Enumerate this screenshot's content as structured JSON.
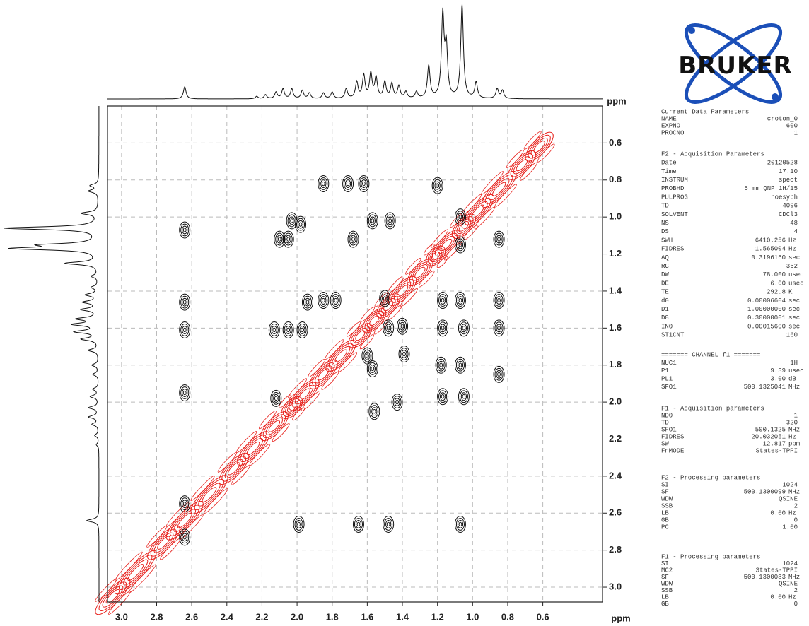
{
  "chart_data": {
    "type": "contour",
    "xlabel": "ppm",
    "ylabel": "ppm",
    "xlim": [
      3.08,
      0.26
    ],
    "ylim": [
      0.4,
      3.08
    ],
    "xticks": [
      {
        "value": 3,
        "label": "3.0"
      },
      2.8,
      2.6,
      2.4,
      2.2,
      {
        "value": 2,
        "label": "2.0"
      },
      1.8,
      1.6,
      1.4,
      1.2,
      {
        "value": 1,
        "label": "1.0"
      },
      0.8,
      0.6
    ],
    "yticks": [
      0.6,
      0.8,
      {
        "value": 1,
        "label": "1.0"
      },
      1.2,
      1.4,
      1.6,
      1.8,
      {
        "value": 2,
        "label": "2.0"
      },
      2.2,
      2.4,
      2.6,
      2.8,
      {
        "value": 3,
        "label": "3.0"
      }
    ],
    "grid": true,
    "series": [
      {
        "color": "#e8211c",
        "x": [
          3.05,
          2.92,
          2.76,
          2.64,
          2.5,
          2.36,
          2.25,
          2.13,
          2.03,
          1.96,
          1.85,
          1.75,
          1.64,
          1.56,
          1.48,
          1.4,
          1.3,
          1.21,
          1.15,
          1.05,
          0.97,
          0.85,
          0.72,
          0.62
        ],
        "values": [
          3.05,
          2.92,
          2.76,
          2.64,
          2.5,
          2.36,
          2.25,
          2.13,
          2.03,
          1.96,
          1.85,
          1.75,
          1.64,
          1.56,
          1.48,
          1.4,
          1.3,
          1.21,
          1.15,
          1.05,
          0.97,
          0.85,
          0.72,
          0.62
        ]
      },
      {
        "color": "#111111",
        "x": [
          2.64,
          2.64,
          2.64,
          2.64,
          2.64,
          2.64,
          2.12,
          2.13,
          2.1,
          2.05,
          2.03,
          1.98,
          2.05,
          1.97,
          1.94,
          1.85,
          1.71,
          1.62,
          1.57,
          1.47,
          1.68,
          1.5,
          1.48,
          1.4,
          1.39,
          1.6,
          1.57,
          1.56,
          1.43,
          1.85,
          1.78,
          1.2,
          1.17,
          1.17,
          1.18,
          1.17,
          1.07,
          1.07,
          1.07,
          1.05,
          1.05,
          1.07,
          0.85,
          0.85,
          0.85,
          0.85,
          1.99,
          1.65,
          1.48,
          1.07
        ],
        "values": [
          1.07,
          1.46,
          1.61,
          1.95,
          2.55,
          2.73,
          1.98,
          1.61,
          1.12,
          1.12,
          1.02,
          1.04,
          1.61,
          1.61,
          1.46,
          0.82,
          0.82,
          0.82,
          1.02,
          1.02,
          1.12,
          1.44,
          1.6,
          1.59,
          1.74,
          1.75,
          1.82,
          2.05,
          2.0,
          1.45,
          1.45,
          0.83,
          1.45,
          1.6,
          1.8,
          1.97,
          1.0,
          1.15,
          1.45,
          1.6,
          1.97,
          1.8,
          1.12,
          1.45,
          1.6,
          1.85,
          2.66,
          2.66,
          2.66,
          2.66
        ]
      }
    ],
    "projection": {
      "x": [
        2.64,
        2.23,
        2.18,
        2.12,
        2.08,
        2.03,
        1.97,
        1.93,
        1.85,
        1.8,
        1.72,
        1.66,
        1.62,
        1.58,
        1.55,
        1.5,
        1.46,
        1.42,
        1.38,
        1.32,
        1.25,
        1.17,
        1.15,
        1.06,
        0.98,
        0.86,
        0.83
      ],
      "values": [
        15,
        3,
        5,
        8,
        12,
        12,
        10,
        7,
        7,
        8,
        12,
        20,
        28,
        30,
        25,
        20,
        18,
        15,
        8,
        8,
        40,
        100,
        60,
        115,
        20,
        12,
        10
      ]
    }
  },
  "logo": {
    "text": "BRUKER"
  },
  "parameters": [
    {
      "title": "Current Data Parameters",
      "rows": [
        [
          "NAME",
          "croton_0"
        ],
        [
          "EXPNO",
          "600"
        ],
        [
          "PROCNO",
          "1"
        ]
      ]
    },
    {
      "title": "F2 - Acquisition Parameters",
      "rows": [
        [
          "Date_",
          "20120528"
        ],
        [
          "Time",
          "17.10"
        ],
        [
          "INSTRUM",
          "spect"
        ],
        [
          "PROBHD",
          "5 mm QNP 1H/15"
        ],
        [
          "PULPROG",
          "noesyph"
        ],
        [
          "TD",
          "4096"
        ],
        [
          "SOLVENT",
          "CDCl3"
        ],
        [
          "NS",
          "48"
        ],
        [
          "DS",
          "4"
        ],
        [
          "SWH",
          "6410.256",
          "Hz"
        ],
        [
          "FIDRES",
          "1.565004",
          "Hz"
        ],
        [
          "AQ",
          "0.3196160",
          "sec"
        ],
        [
          "RG",
          "362"
        ],
        [
          "DW",
          "78.000",
          "usec"
        ],
        [
          "DE",
          "6.00",
          "usec"
        ],
        [
          "TE",
          "292.8",
          "K"
        ],
        [
          "d0",
          "0.00006604",
          "sec"
        ],
        [
          "D1",
          "1.00000000",
          "sec"
        ],
        [
          "D8",
          "0.30000001",
          "sec"
        ],
        [
          "IN0",
          "0.00015600",
          "sec"
        ],
        [
          "ST1CNT",
          "160"
        ]
      ]
    },
    {
      "title": "======= CHANNEL f1 =======",
      "rows": [
        [
          "NUC1",
          "1H"
        ],
        [
          "P1",
          "9.39",
          "usec"
        ],
        [
          "PL1",
          "3.00",
          "dB"
        ],
        [
          "SFO1",
          "500.1325041",
          "MHz"
        ]
      ]
    },
    {
      "title": "F1 - Acquisition parameters",
      "rows": [
        [
          "ND0",
          "1"
        ],
        [
          "TD",
          "320"
        ],
        [
          "SFO1",
          "500.1325",
          "MHz"
        ],
        [
          "FIDRES",
          "20.032051",
          "Hz"
        ],
        [
          "SW",
          "12.817",
          "ppm"
        ],
        [
          "FnMODE",
          "States-TPPI"
        ]
      ]
    },
    {
      "title": "F2 - Processing parameters",
      "rows": [
        [
          "SI",
          "1024"
        ],
        [
          "SF",
          "500.1300099",
          "MHz"
        ],
        [
          "WDW",
          "QSINE"
        ],
        [
          "SSB",
          "2"
        ],
        [
          "LB",
          "0.00",
          "Hz"
        ],
        [
          "GB",
          "0"
        ],
        [
          "PC",
          "1.00"
        ]
      ]
    },
    {
      "title": "F1 - Processing parameters",
      "rows": [
        [
          "SI",
          "1024"
        ],
        [
          "MC2",
          "States-TPPI"
        ],
        [
          "SF",
          "500.1300083",
          "MHz"
        ],
        [
          "WDW",
          "QSINE"
        ],
        [
          "SSB",
          "2"
        ],
        [
          "LB",
          "0.00",
          "Hz"
        ],
        [
          "GB",
          "0"
        ]
      ]
    }
  ]
}
